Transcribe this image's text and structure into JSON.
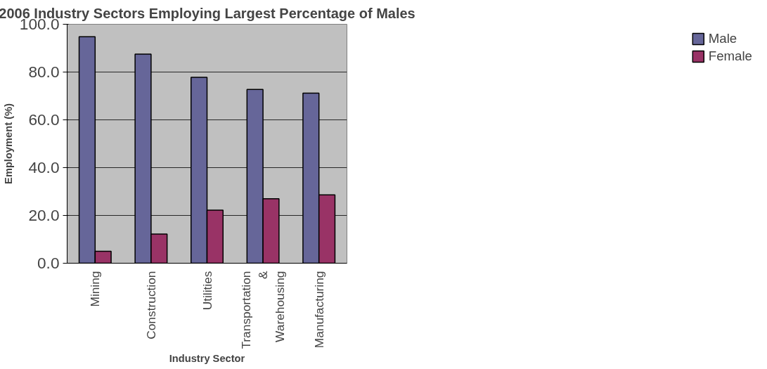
{
  "chart_data": {
    "type": "bar",
    "title": "2006 Industry Sectors Employing Largest Percentage of Males",
    "xlabel": "Industry Sector",
    "ylabel": "Employment (%)",
    "categories": [
      "Mining",
      "Construction",
      "Utilities",
      "Transportation & Warehousing",
      "Manufacturing"
    ],
    "series": [
      {
        "name": "Male",
        "color": "#666699",
        "values": [
          94.8,
          87.5,
          77.8,
          72.7,
          71.2
        ]
      },
      {
        "name": "Female",
        "color": "#993366",
        "values": [
          5.0,
          12.2,
          22.2,
          27.0,
          28.6
        ]
      }
    ],
    "ylim": [
      0,
      100
    ],
    "yticks": [
      {
        "value": 0,
        "label": "0.0"
      },
      {
        "value": 20,
        "label": "20.0"
      },
      {
        "value": 40,
        "label": "40.0"
      },
      {
        "value": 60,
        "label": "60.0"
      },
      {
        "value": 80,
        "label": "80.0"
      },
      {
        "value": 100,
        "label": "100.0"
      }
    ],
    "grid": "y",
    "legend": "right"
  }
}
